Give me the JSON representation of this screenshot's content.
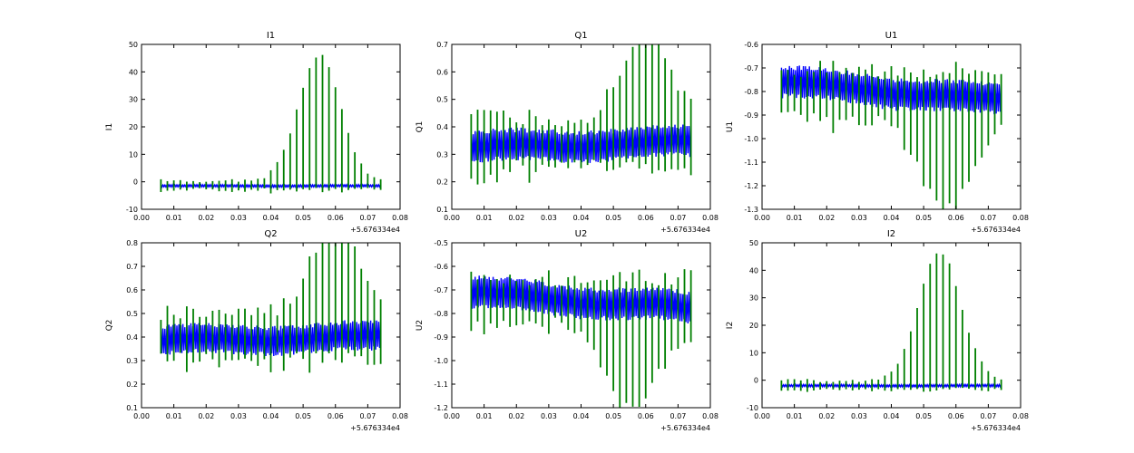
{
  "chart_data": [
    {
      "type": "line",
      "title": "I1",
      "ylabel": "I1",
      "xlim": [
        0.0,
        0.08
      ],
      "ylim": [
        -10,
        50
      ],
      "xticks": [
        "0.00",
        "0.01",
        "0.02",
        "0.03",
        "0.04",
        "0.05",
        "0.06",
        "0.07",
        "0.08"
      ],
      "yticks": [
        "-10",
        "0",
        "10",
        "20",
        "30",
        "40",
        "50"
      ],
      "x_offset_label": "+5.676334e4",
      "series": [
        {
          "color": "#0000ff",
          "style": "flat",
          "x_range": [
            0.006,
            0.074
          ],
          "base": [
            -1.5,
            -1.5
          ],
          "amp": 0.4
        },
        {
          "color": "#008000",
          "style": "sticks",
          "x_range": [
            0.006,
            0.074
          ],
          "step": 0.002,
          "base": -1.5,
          "peak": {
            "center": 0.055,
            "width": 0.0065,
            "height": 46
          },
          "amp": 2.5
        }
      ]
    },
    {
      "type": "line",
      "title": "Q1",
      "ylabel": "Q1",
      "xlim": [
        0.0,
        0.08
      ],
      "ylim": [
        0.1,
        0.7
      ],
      "xticks": [
        "0.00",
        "0.01",
        "0.02",
        "0.03",
        "0.04",
        "0.05",
        "0.06",
        "0.07",
        "0.08"
      ],
      "yticks": [
        "0.1",
        "0.2",
        "0.3",
        "0.4",
        "0.5",
        "0.6",
        "0.7"
      ],
      "x_offset_label": "+5.676334e4",
      "series": [
        {
          "color": "#0000ff",
          "style": "band",
          "x_range": [
            0.006,
            0.074
          ],
          "base": [
            0.325,
            0.345
          ],
          "amp": 0.06
        },
        {
          "color": "#008000",
          "style": "sticks",
          "x_range": [
            0.006,
            0.074
          ],
          "step": 0.002,
          "base": 0.33,
          "peak": {
            "center": 0.06,
            "width": 0.007,
            "height": 0.34
          },
          "amp": 0.14
        }
      ]
    },
    {
      "type": "line",
      "title": "U1",
      "ylabel": "U1",
      "xlim": [
        0.0,
        0.08
      ],
      "ylim": [
        -1.3,
        -0.6
      ],
      "xticks": [
        "0.00",
        "0.01",
        "0.02",
        "0.03",
        "0.04",
        "0.05",
        "0.06",
        "0.07",
        "0.08"
      ],
      "yticks": [
        "-1.3",
        "-1.2",
        "-1.1",
        "-1.0",
        "-0.9",
        "-0.8",
        "-0.7",
        "-0.6"
      ],
      "x_offset_label": "+5.676334e4",
      "series": [
        {
          "color": "#0000ff",
          "style": "band",
          "x_range": [
            0.006,
            0.074
          ],
          "base": [
            -0.76,
            -0.84
          ],
          "amp": 0.07
        },
        {
          "color": "#008000",
          "style": "sticks",
          "x_range": [
            0.006,
            0.074
          ],
          "step": 0.002,
          "base": -0.82,
          "peak": {
            "center": 0.057,
            "width": 0.008,
            "height": -0.38
          },
          "amp": 0.16
        }
      ]
    },
    {
      "type": "line",
      "title": "Q2",
      "ylabel": "Q2",
      "xlim": [
        0.0,
        0.08
      ],
      "ylim": [
        0.1,
        0.8
      ],
      "xticks": [
        "0.00",
        "0.01",
        "0.02",
        "0.03",
        "0.04",
        "0.05",
        "0.06",
        "0.07",
        "0.08"
      ],
      "yticks": [
        "0.1",
        "0.2",
        "0.3",
        "0.4",
        "0.5",
        "0.6",
        "0.7",
        "0.8"
      ],
      "x_offset_label": "+5.676334e4",
      "series": [
        {
          "color": "#0000ff",
          "style": "band",
          "x_range": [
            0.006,
            0.074
          ],
          "base": [
            0.385,
            0.4
          ],
          "amp": 0.065
        },
        {
          "color": "#008000",
          "style": "sticks",
          "x_range": [
            0.006,
            0.074
          ],
          "step": 0.002,
          "base": 0.39,
          "peak": {
            "center": 0.06,
            "width": 0.007,
            "height": 0.4
          },
          "amp": 0.15
        }
      ]
    },
    {
      "type": "line",
      "title": "U2",
      "ylabel": "U2",
      "xlim": [
        0.0,
        0.08
      ],
      "ylim": [
        -1.2,
        -0.5
      ],
      "xticks": [
        "0.00",
        "0.01",
        "0.02",
        "0.03",
        "0.04",
        "0.05",
        "0.06",
        "0.07",
        "0.08"
      ],
      "yticks": [
        "-1.2",
        "-1.1",
        "-1.0",
        "-0.9",
        "-0.8",
        "-0.7",
        "-0.6",
        "-0.5"
      ],
      "x_offset_label": "+5.676334e4",
      "series": [
        {
          "color": "#0000ff",
          "style": "band",
          "x_range": [
            0.006,
            0.074
          ],
          "base": [
            -0.71,
            -0.78
          ],
          "amp": 0.07
        },
        {
          "color": "#008000",
          "style": "sticks",
          "x_range": [
            0.006,
            0.074
          ],
          "step": 0.002,
          "base": -0.76,
          "peak": {
            "center": 0.056,
            "width": 0.008,
            "height": -0.35
          },
          "amp": 0.15
        }
      ]
    },
    {
      "type": "line",
      "title": "I2",
      "ylabel": "I2",
      "xlim": [
        0.0,
        0.08
      ],
      "ylim": [
        -10,
        50
      ],
      "xticks": [
        "0.00",
        "0.01",
        "0.02",
        "0.03",
        "0.04",
        "0.05",
        "0.06",
        "0.07",
        "0.08"
      ],
      "yticks": [
        "-10",
        "0",
        "10",
        "20",
        "30",
        "40",
        "50"
      ],
      "x_offset_label": "+5.676334e4",
      "series": [
        {
          "color": "#0000ff",
          "style": "flat",
          "x_range": [
            0.006,
            0.074
          ],
          "base": [
            -2,
            -2
          ],
          "amp": 0.4
        },
        {
          "color": "#008000",
          "style": "sticks",
          "x_range": [
            0.006,
            0.074
          ],
          "step": 0.002,
          "base": -2,
          "peak": {
            "center": 0.055,
            "width": 0.0065,
            "height": 47
          },
          "amp": 2.5
        }
      ]
    }
  ]
}
